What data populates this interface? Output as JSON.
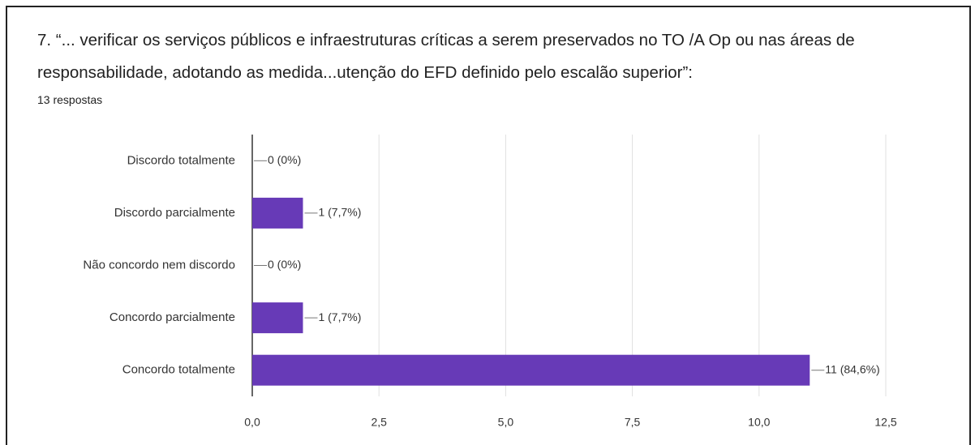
{
  "chart_data": {
    "type": "bar",
    "orientation": "horizontal",
    "title": "7. “... verificar os serviços públicos e infraestruturas críticas a serem preservados no TO /A Op ou nas áreas de responsabilidade, adotando as medida...utenção do EFD definido pelo escalão superior”:",
    "subtitle": "13 respostas",
    "categories": [
      "Discordo totalmente",
      "Discordo parcialmente",
      "Não concordo nem discordo",
      "Concordo parcialmente",
      "Concordo totalmente"
    ],
    "values": [
      0,
      1,
      0,
      1,
      11
    ],
    "value_labels": [
      "0 (0%)",
      "1 (7,7%)",
      "0 (0%)",
      "1 (7,7%)",
      "11 (84,6%)"
    ],
    "color": "#673ab7",
    "xlim": [
      0,
      12.5
    ],
    "xticks": [
      {
        "value": 0,
        "label": "0,0"
      },
      {
        "value": 2.5,
        "label": "2,5"
      },
      {
        "value": 5,
        "label": "5,0"
      },
      {
        "value": 7.5,
        "label": "7,5"
      },
      {
        "value": 10,
        "label": "10,0"
      },
      {
        "value": 12.5,
        "label": "12,5"
      }
    ],
    "grid": true
  }
}
